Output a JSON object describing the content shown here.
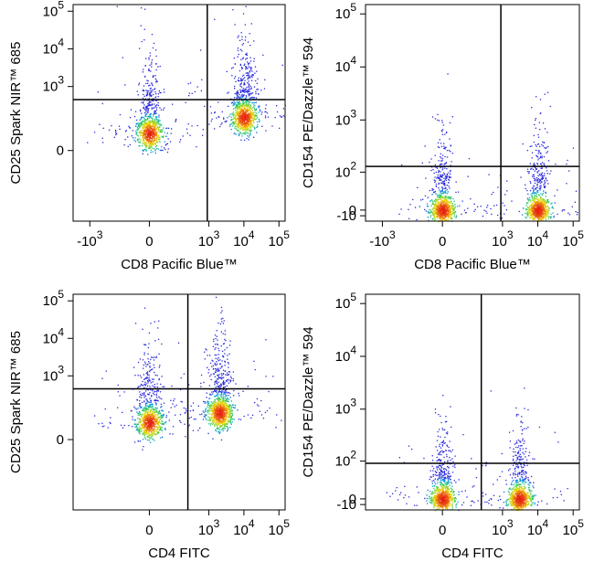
{
  "figure": {
    "background": "#ffffff",
    "axis_color": "#000000",
    "gate_color": "#000000"
  },
  "chart_data": [
    {
      "type": "scatter",
      "title": "",
      "xlabel": "CD8 Pacific Blue™",
      "ylabel": "CD25 Spark NIR™ 685",
      "x_ticks": [
        {
          "v": -1000,
          "label": "-10",
          "exp": "3"
        },
        {
          "v": 0,
          "label": "0",
          "exp": ""
        },
        {
          "v": 1000,
          "label": "10",
          "exp": "3"
        },
        {
          "v": 10000,
          "label": "10",
          "exp": "4"
        },
        {
          "v": 100000,
          "label": "10",
          "exp": "5"
        }
      ],
      "y_ticks": [
        {
          "v": 0,
          "label": "0",
          "exp": ""
        },
        {
          "v": 1000,
          "label": "10",
          "exp": "3"
        },
        {
          "v": 10000,
          "label": "10",
          "exp": "4"
        },
        {
          "v": 100000,
          "label": "10",
          "exp": "5"
        }
      ],
      "xlim": [
        -3000,
        150000
      ],
      "ylim": [
        -1500,
        150000
      ],
      "x_scale": "biexponential",
      "y_scale": "biexponential",
      "quadrant_gate": {
        "x": 900,
        "y": 450
      },
      "populations": [
        {
          "name": "",
          "x": 0,
          "y": 50,
          "count": 900,
          "sx": 0.16,
          "sy": 0.2,
          "tail_y": 8000
        },
        {
          "name": "",
          "x": 10000,
          "y": 150,
          "count": 1000,
          "sx": 0.16,
          "sy": 0.2,
          "tail_y": 8000
        }
      ]
    },
    {
      "type": "scatter",
      "title": "",
      "xlabel": "CD8 Pacific Blue™",
      "ylabel": "CD154 PE/Dazzle™ 594",
      "x_ticks": [
        {
          "v": -1000,
          "label": "-10",
          "exp": "3"
        },
        {
          "v": 0,
          "label": "0",
          "exp": ""
        },
        {
          "v": 1000,
          "label": "10",
          "exp": "3"
        },
        {
          "v": 10000,
          "label": "10",
          "exp": "4"
        },
        {
          "v": 100000,
          "label": "10",
          "exp": "5"
        }
      ],
      "y_ticks": [
        {
          "v": -10,
          "label": "-10",
          "exp": ""
        },
        {
          "v": 0,
          "label": "0",
          "exp": ""
        },
        {
          "v": 100,
          "label": "10",
          "exp": "2"
        },
        {
          "v": 1000,
          "label": "10",
          "exp": "3"
        },
        {
          "v": 10000,
          "label": "10",
          "exp": "4"
        },
        {
          "v": 100000,
          "label": "10",
          "exp": "5"
        }
      ],
      "xlim": [
        -3000,
        150000
      ],
      "ylim": [
        -20,
        150000
      ],
      "x_scale": "biexponential",
      "y_scale": "biexponential",
      "quadrant_gate": {
        "x": 900,
        "y": 130
      },
      "populations": [
        {
          "name": "",
          "x": 0,
          "y": 0,
          "count": 900,
          "sx": 0.14,
          "sy": 0.14,
          "tail_y": 400
        },
        {
          "name": "",
          "x": 10000,
          "y": 0,
          "count": 900,
          "sx": 0.14,
          "sy": 0.14,
          "tail_y": 400
        }
      ]
    },
    {
      "type": "scatter",
      "title": "",
      "xlabel": "CD4 FITC",
      "ylabel": "CD25 Spark NIR™ 685",
      "x_ticks": [
        {
          "v": 0,
          "label": "0",
          "exp": ""
        },
        {
          "v": 1000,
          "label": "10",
          "exp": "3"
        },
        {
          "v": 10000,
          "label": "10",
          "exp": "4"
        },
        {
          "v": 100000,
          "label": "10",
          "exp": "5"
        }
      ],
      "y_ticks": [
        {
          "v": 0,
          "label": "0",
          "exp": ""
        },
        {
          "v": 1000,
          "label": "10",
          "exp": "3"
        },
        {
          "v": 10000,
          "label": "10",
          "exp": "4"
        },
        {
          "v": 100000,
          "label": "10",
          "exp": "5"
        }
      ],
      "xlim": [
        -3000,
        150000
      ],
      "ylim": [
        -1500,
        150000
      ],
      "x_scale": "biexponential",
      "y_scale": "biexponential",
      "quadrant_gate": {
        "x": 250,
        "y": 450
      },
      "populations": [
        {
          "name": "",
          "x": 0,
          "y": 50,
          "count": 900,
          "sx": 0.16,
          "sy": 0.2,
          "tail_y": 8000
        },
        {
          "name": "",
          "x": 2000,
          "y": 100,
          "count": 1000,
          "sx": 0.16,
          "sy": 0.2,
          "tail_y": 8000
        }
      ]
    },
    {
      "type": "scatter",
      "title": "",
      "xlabel": "CD4 FITC",
      "ylabel": "CD154 PE/Dazzle™ 594",
      "x_ticks": [
        {
          "v": 0,
          "label": "0",
          "exp": ""
        },
        {
          "v": 1000,
          "label": "10",
          "exp": "3"
        },
        {
          "v": 10000,
          "label": "10",
          "exp": "4"
        },
        {
          "v": 100000,
          "label": "10",
          "exp": "5"
        }
      ],
      "y_ticks": [
        {
          "v": -10,
          "label": "-10",
          "exp": ""
        },
        {
          "v": 0,
          "label": "0",
          "exp": ""
        },
        {
          "v": 100,
          "label": "10",
          "exp": "2"
        },
        {
          "v": 1000,
          "label": "10",
          "exp": "3"
        },
        {
          "v": 10000,
          "label": "10",
          "exp": "4"
        },
        {
          "v": 100000,
          "label": "10",
          "exp": "5"
        }
      ],
      "xlim": [
        -3000,
        150000
      ],
      "ylim": [
        -20,
        150000
      ],
      "x_scale": "biexponential",
      "y_scale": "biexponential",
      "quadrant_gate": {
        "x": 250,
        "y": 90
      },
      "populations": [
        {
          "name": "",
          "x": 0,
          "y": 0,
          "count": 900,
          "sx": 0.14,
          "sy": 0.14,
          "tail_y": 400
        },
        {
          "name": "",
          "x": 3000,
          "y": 0,
          "count": 900,
          "sx": 0.14,
          "sy": 0.14,
          "tail_y": 400
        }
      ]
    }
  ]
}
